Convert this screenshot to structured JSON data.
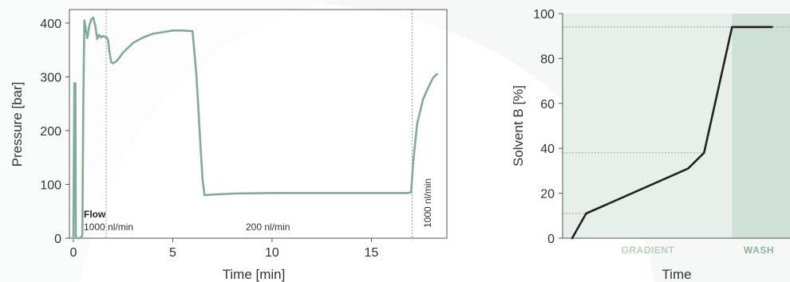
{
  "colors": {
    "trace": "#7fac95",
    "line": "#222222",
    "axis": "#555555",
    "gradient_fill": "#e6efea",
    "wash_fill": "#cfe0d7",
    "gradient_label": "#b7cfc2",
    "wash_label": "#8fb3a0",
    "guide": "#888888"
  },
  "chart_data": [
    {
      "type": "line",
      "title": "",
      "xlabel": "Time [min]",
      "ylabel": "Pressure [bar]",
      "xlim": [
        -0.2,
        18.8
      ],
      "ylim": [
        0,
        425
      ],
      "xticks": [
        0,
        5,
        10,
        15
      ],
      "yticks": [
        0,
        100,
        200,
        300,
        400
      ],
      "grid": false,
      "series": [
        {
          "x": [
            0.0,
            0.05,
            0.1,
            0.12,
            0.15,
            0.25,
            0.35,
            0.45,
            0.5,
            0.55,
            0.6,
            0.7,
            0.8,
            0.9,
            1.0,
            1.1,
            1.2,
            1.3,
            1.4,
            1.5,
            1.6,
            1.7,
            1.75,
            1.8,
            1.9,
            2.0,
            2.2,
            2.5,
            3.0,
            3.5,
            4.0,
            4.5,
            5.0,
            5.5,
            5.9,
            6.0,
            6.2,
            6.4,
            6.5,
            6.6,
            7.0,
            8.0,
            10.0,
            12.0,
            14.0,
            16.0,
            16.8,
            17.0,
            17.1,
            17.3,
            17.6,
            17.9,
            18.1,
            18.3
          ],
          "y": [
            0,
            288,
            288,
            5,
            0,
            0,
            0,
            5,
            250,
            405,
            395,
            372,
            395,
            407,
            410,
            395,
            370,
            378,
            373,
            376,
            374,
            372,
            368,
            350,
            327,
            325,
            330,
            345,
            363,
            373,
            380,
            383,
            386,
            386,
            385,
            385,
            300,
            170,
            110,
            80,
            81,
            83,
            84,
            84,
            84,
            84,
            84,
            85,
            140,
            212,
            258,
            283,
            298,
            305
          ]
        }
      ],
      "annotations": [
        {
          "x": 1.65,
          "text_bold": "Flow",
          "text": "1000 nl/min"
        },
        {
          "x": 10.0,
          "text": "200 nl/min"
        },
        {
          "x": 17.05,
          "text": "1000 nl/min"
        }
      ]
    },
    {
      "type": "line",
      "title": "",
      "xlabel": "Time",
      "ylabel": "Solvent B [%]",
      "ylim": [
        0,
        100
      ],
      "yticks": [
        0,
        20,
        40,
        60,
        80,
        100
      ],
      "grid": false,
      "series": [
        {
          "x": [
            0.0,
            0.07,
            0.58,
            0.66,
            0.8,
            1.0
          ],
          "y": [
            0,
            11,
            31,
            38,
            94,
            94
          ]
        }
      ],
      "guide_levels": [
        11,
        38,
        94
      ],
      "regions": [
        {
          "label": "GRADIENT",
          "x_start": 0.0,
          "x_end": 0.8
        },
        {
          "label": "WASH",
          "x_start": 0.8,
          "x_end": 1.08
        }
      ]
    }
  ]
}
